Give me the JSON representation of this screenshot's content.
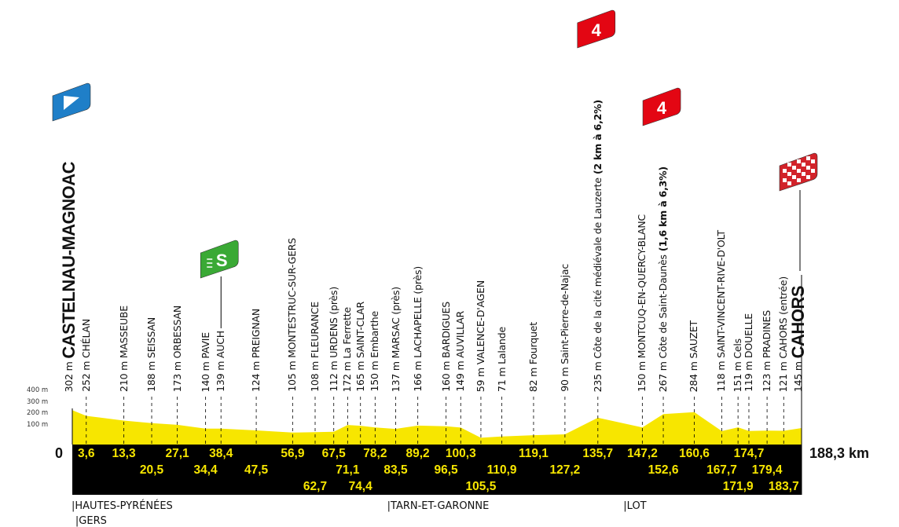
{
  "chart_data": {
    "type": "area",
    "xlabel": "",
    "ylabel": "",
    "x_unit": "km",
    "xlim": [
      0,
      188.3
    ],
    "ylim": [
      0,
      400
    ],
    "y_ticks": [
      "100 m",
      "200 m",
      "300 m",
      "400 m"
    ],
    "y_tick_values": [
      100,
      200,
      300,
      400
    ],
    "x_start_label": "0",
    "x_total_label": "188,3 km",
    "fill_color": "#f7e600",
    "bar_color": "#000000",
    "points": [
      {
        "alt_label": "302 m",
        "name": "CASTELNAU-MAGNOAC",
        "detail": "",
        "km": "0",
        "alt": 302,
        "row": 0,
        "style": "start"
      },
      {
        "alt_label": "252 m",
        "name": "CHÉLAN",
        "detail": "",
        "km": "3,6",
        "alt": 252,
        "row": 1
      },
      {
        "alt_label": "210 m",
        "name": "MASSEUBE",
        "detail": "",
        "km": "13,3",
        "alt": 210,
        "row": 1
      },
      {
        "alt_label": "188 m",
        "name": "SEISSAN",
        "detail": "",
        "km": "20,5",
        "alt": 188,
        "row": 2
      },
      {
        "alt_label": "173 m",
        "name": "ORBESSAN",
        "detail": "",
        "km": "27,1",
        "alt": 173,
        "row": 1
      },
      {
        "alt_label": "140 m",
        "name": "PAVIE",
        "detail": "",
        "km": "34,4",
        "alt": 140,
        "row": 2
      },
      {
        "alt_label": "139 m",
        "name": "AUCH",
        "detail": "",
        "km": "38,4",
        "alt": 139,
        "row": 1,
        "marker": "sprint"
      },
      {
        "alt_label": "124 m",
        "name": "PREIGNAN",
        "detail": "",
        "km": "47,5",
        "alt": 124,
        "row": 2
      },
      {
        "alt_label": "105 m",
        "name": "MONTESTRUC-SUR-GERS",
        "detail": "",
        "km": "56,9",
        "alt": 105,
        "row": 1
      },
      {
        "alt_label": "108 m",
        "name": "FLEURANCE",
        "detail": "",
        "km": "62,7",
        "alt": 108,
        "row": 3
      },
      {
        "alt_label": "112 m",
        "name": "URDENS (près)",
        "detail": "",
        "km": "67,5",
        "alt": 112,
        "row": 1
      },
      {
        "alt_label": "172 m",
        "name": "La Ferrette",
        "detail": "",
        "km": "71,1",
        "alt": 172,
        "row": 2
      },
      {
        "alt_label": "165 m",
        "name": "SAINT-CLAR",
        "detail": "",
        "km": "74,4",
        "alt": 165,
        "row": 3
      },
      {
        "alt_label": "150 m",
        "name": "Embarthe",
        "detail": "",
        "km": "78,2",
        "alt": 150,
        "row": 1
      },
      {
        "alt_label": "137 m",
        "name": "MARSAC (près)",
        "detail": "",
        "km": "83,5",
        "alt": 137,
        "row": 2
      },
      {
        "alt_label": "166 m",
        "name": "LACHAPELLE (près)",
        "detail": "",
        "km": "89,2",
        "alt": 166,
        "row": 1
      },
      {
        "alt_label": "160 m",
        "name": "BARDIGUES",
        "detail": "",
        "km": "96,5",
        "alt": 160,
        "row": 2
      },
      {
        "alt_label": "149 m",
        "name": "AUVILLAR",
        "detail": "",
        "km": "100,3",
        "alt": 149,
        "row": 1
      },
      {
        "alt_label": "59 m",
        "name": "VALENCE-D'AGEN",
        "detail": "",
        "km": "105,5",
        "alt": 59,
        "row": 3
      },
      {
        "alt_label": "71 m",
        "name": "Lalande",
        "detail": "",
        "km": "110,9",
        "alt": 71,
        "row": 2
      },
      {
        "alt_label": "82 m",
        "name": "Fourquet",
        "detail": "",
        "km": "119,1",
        "alt": 82,
        "row": 1
      },
      {
        "alt_label": "90 m",
        "name": "Saint-Pierre-de-Najac",
        "detail": "",
        "km": "127,2",
        "alt": 90,
        "row": 2
      },
      {
        "alt_label": "235 m",
        "name": "Côte de la cité médiévale de Lauzerte",
        "detail": "(2 km à 6,2%)",
        "km": "135,7",
        "alt": 235,
        "row": 1,
        "marker": "kom",
        "category": "4"
      },
      {
        "alt_label": "150 m",
        "name": "MONTCUQ-EN-QUERCY-BLANC",
        "detail": "",
        "km": "147,2",
        "alt": 150,
        "row": 1
      },
      {
        "alt_label": "267 m",
        "name": "Côte de Saint-Daunès",
        "detail": "(1,6 km à 6,3%)",
        "km": "152,6",
        "alt": 267,
        "row": 2,
        "marker": "kom",
        "category": "4"
      },
      {
        "alt_label": "284 m",
        "name": "SAUZET",
        "detail": "",
        "km": "160,6",
        "alt": 284,
        "row": 1
      },
      {
        "alt_label": "118 m",
        "name": "SAINT-VINCENT-RIVE-D'OLT",
        "detail": "",
        "km": "167,7",
        "alt": 118,
        "row": 2
      },
      {
        "alt_label": "151 m",
        "name": "Cels",
        "detail": "",
        "km": "171,9",
        "alt": 151,
        "row": 3
      },
      {
        "alt_label": "119 m",
        "name": "DOUELLE",
        "detail": "",
        "km": "174,7",
        "alt": 119,
        "row": 1
      },
      {
        "alt_label": "123 m",
        "name": "PRADINES",
        "detail": "",
        "km": "179,4",
        "alt": 123,
        "row": 2
      },
      {
        "alt_label": "121 m",
        "name": "CAHORS (entrée)",
        "detail": "",
        "km": "183,7",
        "alt": 121,
        "row": 3
      },
      {
        "alt_label": "145 m",
        "name": "CAHORS",
        "detail": "",
        "km": "188,3",
        "alt": 145,
        "row": 0,
        "style": "finish"
      }
    ],
    "departments": [
      {
        "name": "HAUTES-PYRÉNÉES",
        "km": "0"
      },
      {
        "name": "GERS",
        "km": "1"
      },
      {
        "name": "TARN-ET-GARONNE",
        "km": "81,5"
      },
      {
        "name": "LOT",
        "km": "142,5"
      }
    ]
  },
  "markers": {
    "start_color": "#1f7fc8",
    "sprint_color": "#3aa935",
    "sprint_letter": "S",
    "kom_color": "#e30613",
    "finish_color": "#d2232a"
  }
}
